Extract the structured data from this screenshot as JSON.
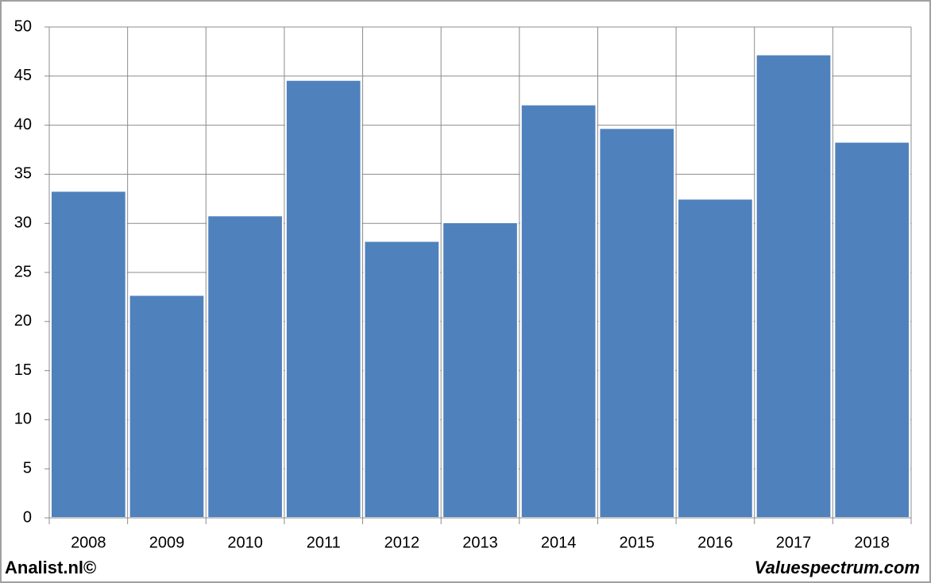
{
  "chart_data": {
    "type": "bar",
    "categories": [
      "2008",
      "2009",
      "2010",
      "2011",
      "2012",
      "2013",
      "2014",
      "2015",
      "2016",
      "2017",
      "2018"
    ],
    "values": [
      33.3,
      22.7,
      30.8,
      44.6,
      28.2,
      30.1,
      42.1,
      39.7,
      32.5,
      47.2,
      38.3
    ],
    "color": "#4f81bd",
    "ylim": [
      0,
      50
    ],
    "yticks": [
      0,
      5,
      10,
      15,
      20,
      25,
      30,
      35,
      40,
      45,
      50
    ],
    "grid": true,
    "footer_left": "Analist.nl©",
    "footer_right": "Valuespectrum.com"
  }
}
